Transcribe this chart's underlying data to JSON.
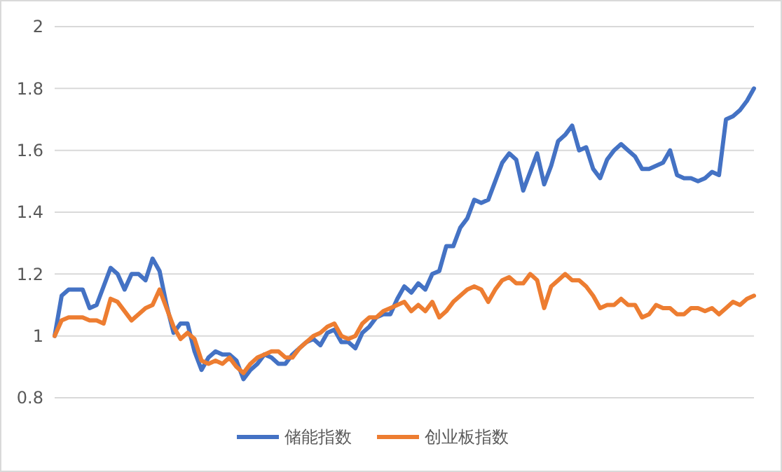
{
  "chart_data": {
    "type": "line",
    "categories": [
      null,
      null,
      null,
      null,
      null,
      null,
      null,
      null,
      null,
      null,
      null,
      null,
      null,
      null,
      null,
      null,
      null,
      null,
      null,
      null,
      null,
      null,
      null,
      null,
      null,
      null,
      null,
      null,
      null,
      null,
      null,
      null,
      null,
      null,
      null,
      null,
      null,
      null,
      null,
      null,
      null,
      null,
      null,
      null,
      null,
      null,
      null,
      null,
      null,
      null,
      null,
      null,
      null,
      null,
      null,
      null,
      null,
      null,
      null,
      null,
      null,
      null,
      null,
      null,
      null,
      null,
      null,
      null,
      null,
      null,
      null,
      null,
      null,
      null,
      null,
      null,
      null,
      null,
      null,
      null,
      null,
      null,
      null,
      null,
      null,
      null,
      null,
      null,
      null,
      null,
      null,
      null,
      null,
      null,
      null,
      null,
      null,
      null,
      null,
      null,
      null
    ],
    "ylim": [
      0.8,
      2
    ],
    "yticks": [
      0.8,
      1,
      1.2,
      1.4,
      1.6,
      1.8,
      2
    ],
    "grid": "y",
    "legend": "bottom",
    "tick_labels": "y",
    "marker": "none",
    "line_style": "solid",
    "series": [
      {
        "name": "储能指数",
        "color": "#4472c4",
        "values": [
          1.0,
          1.13,
          1.15,
          1.15,
          1.15,
          1.09,
          1.1,
          1.16,
          1.22,
          1.2,
          1.15,
          1.2,
          1.2,
          1.18,
          1.25,
          1.21,
          1.1,
          1.01,
          1.04,
          1.04,
          0.95,
          0.89,
          0.93,
          0.95,
          0.94,
          0.94,
          0.92,
          0.86,
          0.89,
          0.91,
          0.94,
          0.93,
          0.91,
          0.91,
          0.94,
          0.96,
          0.98,
          0.99,
          0.97,
          1.01,
          1.02,
          0.98,
          0.98,
          0.96,
          1.01,
          1.03,
          1.06,
          1.07,
          1.07,
          1.12,
          1.16,
          1.14,
          1.17,
          1.15,
          1.2,
          1.21,
          1.29,
          1.29,
          1.35,
          1.38,
          1.44,
          1.43,
          1.44,
          1.5,
          1.56,
          1.59,
          1.57,
          1.47,
          1.53,
          1.59,
          1.49,
          1.55,
          1.63,
          1.65,
          1.68,
          1.6,
          1.61,
          1.54,
          1.51,
          1.57,
          1.6,
          1.62,
          1.6,
          1.58,
          1.54,
          1.54,
          1.55,
          1.56,
          1.6,
          1.52,
          1.51,
          1.51,
          1.5,
          1.51,
          1.53,
          1.52,
          1.7,
          1.71,
          1.73,
          1.76,
          1.8
        ]
      },
      {
        "name": "创业板指数",
        "color": "#ed7d31",
        "values": [
          1.0,
          1.05,
          1.06,
          1.06,
          1.06,
          1.05,
          1.05,
          1.04,
          1.12,
          1.11,
          1.08,
          1.05,
          1.07,
          1.09,
          1.1,
          1.15,
          1.09,
          1.03,
          0.99,
          1.01,
          0.99,
          0.92,
          0.91,
          0.92,
          0.91,
          0.93,
          0.9,
          0.88,
          0.91,
          0.93,
          0.94,
          0.95,
          0.95,
          0.93,
          0.93,
          0.96,
          0.98,
          1.0,
          1.01,
          1.03,
          1.04,
          1.0,
          0.99,
          1.0,
          1.04,
          1.06,
          1.06,
          1.08,
          1.09,
          1.1,
          1.11,
          1.08,
          1.1,
          1.08,
          1.11,
          1.06,
          1.08,
          1.11,
          1.13,
          1.15,
          1.16,
          1.15,
          1.11,
          1.15,
          1.18,
          1.19,
          1.17,
          1.17,
          1.2,
          1.18,
          1.09,
          1.16,
          1.18,
          1.2,
          1.18,
          1.18,
          1.16,
          1.13,
          1.09,
          1.1,
          1.1,
          1.12,
          1.1,
          1.1,
          1.06,
          1.07,
          1.1,
          1.09,
          1.09,
          1.07,
          1.07,
          1.09,
          1.09,
          1.08,
          1.09,
          1.07,
          1.09,
          1.11,
          1.1,
          1.12,
          1.13
        ]
      }
    ]
  }
}
